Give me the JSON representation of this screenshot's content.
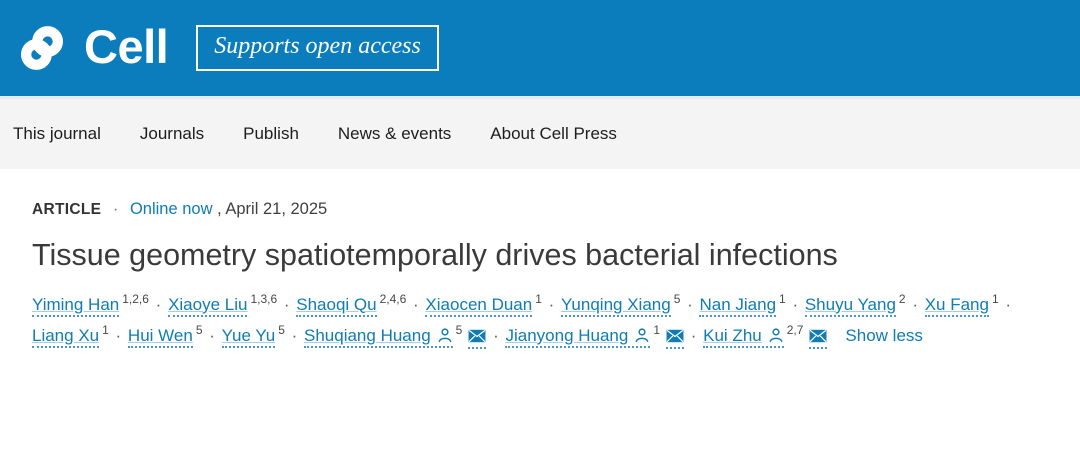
{
  "header": {
    "brand": "Cell",
    "badge": "Supports open access",
    "logo_icon": "cell-interlock-logo"
  },
  "nav": {
    "items": [
      "This journal",
      "Journals",
      "Publish",
      "News & events",
      "About Cell Press"
    ]
  },
  "article": {
    "type_label": "ARTICLE",
    "separator": "·",
    "online_link": "Online now",
    "date_text": ", April 21, 2025",
    "title": "Tissue geometry spatiotemporally drives bacterial infections",
    "show_less": "Show less",
    "author_separator": "·",
    "authors": [
      {
        "name": "Yiming Han",
        "sup": "1,2,6"
      },
      {
        "name": "Xiaoye Liu",
        "sup": "1,3,6"
      },
      {
        "name": "Shaoqi Qu",
        "sup": "2,4,6"
      },
      {
        "name": "Xiaocen Duan",
        "sup": "1"
      },
      {
        "name": "Yunqing Xiang",
        "sup": "5"
      },
      {
        "name": "Nan Jiang",
        "sup": "1"
      },
      {
        "name": "Shuyu Yang",
        "sup": "2"
      },
      {
        "name": "Xu Fang",
        "sup": "1"
      },
      {
        "name": "Liang Xu",
        "sup": "1"
      },
      {
        "name": "Hui Wen",
        "sup": "5"
      },
      {
        "name": "Yue Yu",
        "sup": "5"
      },
      {
        "name": "Shuqiang Huang",
        "sup": "5",
        "profile_icon": "person-icon",
        "email_icon": "envelope-icon"
      },
      {
        "name": "Jianyong Huang",
        "sup": "1",
        "profile_icon": "person-icon",
        "email_icon": "envelope-icon"
      },
      {
        "name": "Kui Zhu",
        "sup": "2,7",
        "profile_icon": "person-icon",
        "email_icon": "envelope-icon"
      }
    ]
  },
  "colors": {
    "header_bg": "#0b7dbd",
    "link_blue": "#0e7cb5",
    "nav_bg": "#f4f4f4",
    "title_text": "#3a3a3a"
  }
}
